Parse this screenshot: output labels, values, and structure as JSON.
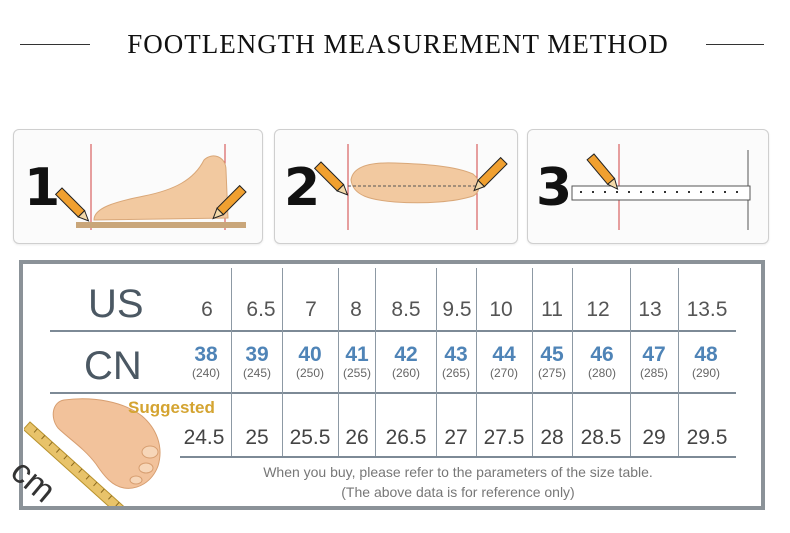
{
  "title": "FOOTLENGTH MEASUREMENT METHOD",
  "steps": [
    {
      "number": "1"
    },
    {
      "number": "2"
    },
    {
      "number": "3"
    }
  ],
  "table": {
    "row_labels": {
      "us": "US",
      "cn": "CN",
      "cm": "cm"
    },
    "suggested": "Suggested",
    "columns": [
      {
        "us": "6",
        "cn": "38",
        "cn_sub": "(240)",
        "cm": "24.5"
      },
      {
        "us": "6.5",
        "cn": "39",
        "cn_sub": "(245)",
        "cm": "25"
      },
      {
        "us": "7",
        "cn": "40",
        "cn_sub": "(250)",
        "cm": "25.5"
      },
      {
        "us": "8",
        "cn": "41",
        "cn_sub": "(255)",
        "cm": "26"
      },
      {
        "us": "8.5",
        "cn": "42",
        "cn_sub": "(260)",
        "cm": "26.5"
      },
      {
        "us": "9.5",
        "cn": "43",
        "cn_sub": "(265)",
        "cm": "27"
      },
      {
        "us": "10",
        "cn": "44",
        "cn_sub": "(270)",
        "cm": "27.5"
      },
      {
        "us": "11",
        "cn": "45",
        "cn_sub": "(275)",
        "cm": "28"
      },
      {
        "us": "12",
        "cn": "46",
        "cn_sub": "(280)",
        "cm": "28.5"
      },
      {
        "us": "13",
        "cn": "47",
        "cn_sub": "(285)",
        "cm": "29"
      },
      {
        "us": "13.5",
        "cn": "48",
        "cn_sub": "(290)",
        "cm": "29.5"
      }
    ],
    "notes": [
      "When you buy, please refer to the parameters of the size table.",
      "(The above data is for reference only)"
    ]
  },
  "colors": {
    "cn_value": "#4f84b7",
    "suggested": "#d4a431",
    "table_border": "#8b9298",
    "pencil": "#f0a030"
  }
}
